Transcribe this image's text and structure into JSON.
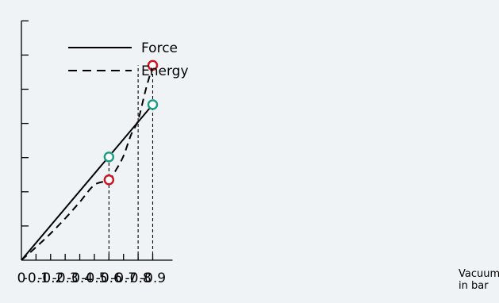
{
  "chart_data": {
    "type": "line",
    "title": "",
    "xlabel": [
      "Vacuum",
      "in bar"
    ],
    "ylabel": "",
    "xlim": [
      0,
      -0.9
    ],
    "ylim": [
      0,
      7
    ],
    "x_ticks": [
      "0",
      "-0.1",
      "-0.2",
      "-0.3",
      "-0.4",
      "-0.5",
      "-0.6",
      "-0.7",
      "-0.8",
      "-0.9"
    ],
    "y_tick_count": 7,
    "grid": false,
    "legend_position": "top-left",
    "series": [
      {
        "name": "Force",
        "style": "solid",
        "x": [
          0,
          -0.9
        ],
        "y": [
          0,
          4.55
        ]
      },
      {
        "name": "Energy",
        "style": "dashed",
        "x": [
          0,
          -0.1,
          -0.2,
          -0.3,
          -0.4,
          -0.5,
          -0.6,
          -0.65,
          -0.7,
          -0.75,
          -0.8,
          -0.85,
          -0.9
        ],
        "y": [
          0,
          0.38,
          0.78,
          1.22,
          1.7,
          2.2,
          2.35,
          2.65,
          3.05,
          3.65,
          4.1,
          4.95,
          5.7
        ]
      }
    ],
    "markers": [
      {
        "series": "Force",
        "x": -0.6,
        "y": 3.02,
        "color": "#1a9c84"
      },
      {
        "series": "Force",
        "x": -0.9,
        "y": 4.55,
        "color": "#1a9c84"
      },
      {
        "series": "Energy",
        "x": -0.6,
        "y": 2.35,
        "color": "#d0101e"
      },
      {
        "series": "Energy",
        "x": -0.9,
        "y": 5.7,
        "color": "#d0101e"
      }
    ],
    "reference_lines": [
      {
        "x": -0.6,
        "y_top": 3.02
      },
      {
        "x": -0.8,
        "y_top": 5.7
      },
      {
        "x": -0.9,
        "y_top": 5.7
      }
    ],
    "colors": {
      "background": "#eff3f6",
      "axis": "#000000",
      "force_marker": "#1a9c84",
      "energy_marker": "#d0101e"
    }
  }
}
